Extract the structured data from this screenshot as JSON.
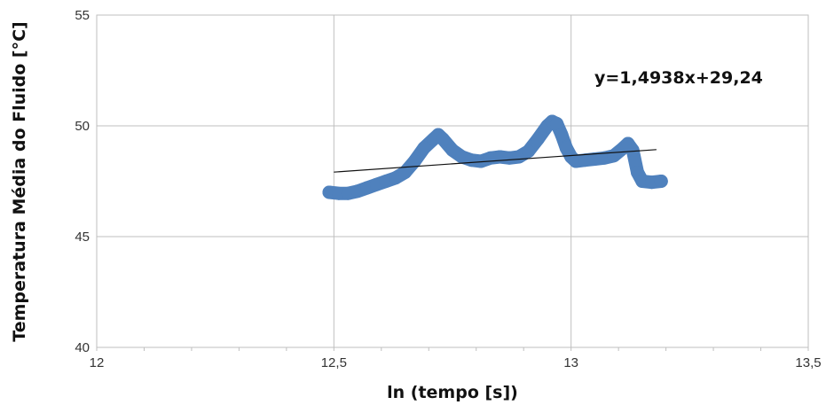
{
  "chart_data": {
    "type": "scatter",
    "title": "",
    "xlabel": "ln (tempo [s])",
    "ylabel": "Temperatura Média do Fluido [°C]",
    "xlim": [
      12,
      13.5
    ],
    "ylim": [
      40,
      55
    ],
    "x_ticks": [
      12,
      12.5,
      13,
      13.5
    ],
    "y_ticks": [
      40,
      45,
      50,
      55
    ],
    "x_tick_labels": [
      "12",
      "12,5",
      "13",
      "13,5"
    ],
    "y_tick_labels": [
      "40",
      "45",
      "50",
      "55"
    ],
    "grid": true,
    "legend": "none",
    "series": [
      {
        "color": "#4f81bd",
        "points": [
          [
            12.49,
            47.0
          ],
          [
            12.51,
            46.95
          ],
          [
            12.53,
            46.95
          ],
          [
            12.55,
            47.05
          ],
          [
            12.57,
            47.2
          ],
          [
            12.59,
            47.35
          ],
          [
            12.61,
            47.5
          ],
          [
            12.63,
            47.65
          ],
          [
            12.65,
            47.9
          ],
          [
            12.67,
            48.4
          ],
          [
            12.69,
            49.0
          ],
          [
            12.71,
            49.4
          ],
          [
            12.72,
            49.6
          ],
          [
            12.73,
            49.4
          ],
          [
            12.75,
            48.9
          ],
          [
            12.77,
            48.6
          ],
          [
            12.79,
            48.45
          ],
          [
            12.81,
            48.4
          ],
          [
            12.83,
            48.55
          ],
          [
            12.85,
            48.6
          ],
          [
            12.87,
            48.55
          ],
          [
            12.89,
            48.6
          ],
          [
            12.91,
            48.85
          ],
          [
            12.93,
            49.4
          ],
          [
            12.95,
            50.0
          ],
          [
            12.96,
            50.2
          ],
          [
            12.97,
            50.1
          ],
          [
            12.98,
            49.6
          ],
          [
            12.99,
            49.0
          ],
          [
            13.0,
            48.6
          ],
          [
            13.01,
            48.4
          ],
          [
            13.03,
            48.45
          ],
          [
            13.05,
            48.5
          ],
          [
            13.07,
            48.55
          ],
          [
            13.09,
            48.65
          ],
          [
            13.11,
            49.0
          ],
          [
            13.12,
            49.2
          ],
          [
            13.13,
            48.9
          ],
          [
            13.14,
            47.9
          ],
          [
            13.15,
            47.5
          ],
          [
            13.17,
            47.45
          ],
          [
            13.19,
            47.5
          ]
        ]
      }
    ],
    "trendline": {
      "slope": 1.4938,
      "intercept": 29.24,
      "x_range": [
        12.5,
        13.18
      ],
      "color": "#111111",
      "label": "y=1,4938x+29,24"
    }
  }
}
